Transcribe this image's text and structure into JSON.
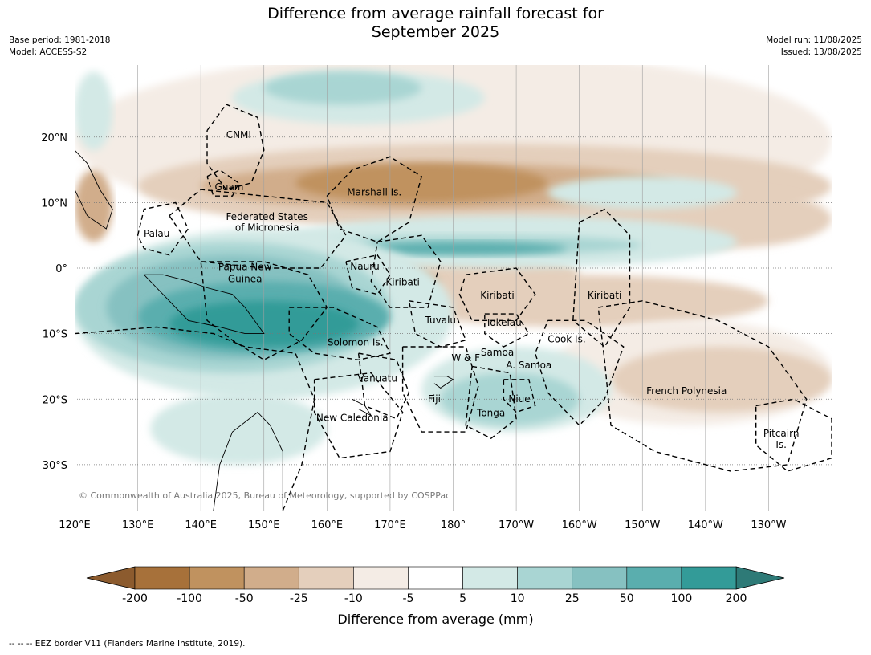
{
  "header": {
    "title_line1": "Difference from average rainfall forecast for",
    "title_line2": "September 2025",
    "base_period": "Base period: 1981-2018",
    "model": "Model: ACCESS-S2",
    "model_run": "Model run: 11/08/2025",
    "issued": "Issued: 13/08/2025"
  },
  "map": {
    "lon_labels": [
      "120°E",
      "130°E",
      "140°E",
      "150°E",
      "160°E",
      "170°E",
      "180°",
      "170°W",
      "160°W",
      "150°W",
      "140°W",
      "130°W"
    ],
    "lat_labels": [
      "20°N",
      "10°N",
      "0°",
      "10°S",
      "20°S",
      "30°S"
    ],
    "lat_values": [
      20,
      10,
      0,
      -10,
      -20,
      -30
    ],
    "lon_range": [
      120,
      240
    ],
    "lat_range": [
      -37,
      31
    ],
    "copyright": "© Commonwealth of Australia 2025, Bureau of Meteorology, supported by COSPPac",
    "regions": [
      {
        "name": "CNMI",
        "lon": 146,
        "lat": 20.3
      },
      {
        "name": "Guam",
        "lon": 144.5,
        "lat": 12.3
      },
      {
        "name": "Marshall Is.",
        "lon": 167.5,
        "lat": 11.5
      },
      {
        "name": "Federated States",
        "lon": 150.5,
        "lat": 7.8
      },
      {
        "name": "of Micronesia",
        "lon": 150.5,
        "lat": 6.1
      },
      {
        "name": "Palau",
        "lon": 133,
        "lat": 5.2
      },
      {
        "name": "Papua New",
        "lon": 147,
        "lat": 0.1
      },
      {
        "name": "Guinea",
        "lon": 147,
        "lat": -1.7
      },
      {
        "name": "Nauru",
        "lon": 166,
        "lat": 0.2
      },
      {
        "name": "Kiribati",
        "lon": 172,
        "lat": -2.2
      },
      {
        "name": "Kiribati",
        "lon": 187,
        "lat": -4.2
      },
      {
        "name": "Kiribati",
        "lon": 204,
        "lat": -4.2
      },
      {
        "name": "Tuvalu",
        "lon": 178,
        "lat": -8
      },
      {
        "name": "Tokelau",
        "lon": 188,
        "lat": -8.4
      },
      {
        "name": "Cook Is.",
        "lon": 198,
        "lat": -10.9
      },
      {
        "name": "Solomon Is.",
        "lon": 164.5,
        "lat": -11.4
      },
      {
        "name": "W & F",
        "lon": 182,
        "lat": -13.8
      },
      {
        "name": "Samoa",
        "lon": 187,
        "lat": -12.9
      },
      {
        "name": "A. Samoa",
        "lon": 192,
        "lat": -14.9
      },
      {
        "name": "Vanuatu",
        "lon": 168,
        "lat": -16.9
      },
      {
        "name": "Fiji",
        "lon": 177,
        "lat": -20
      },
      {
        "name": "Niue",
        "lon": 190.5,
        "lat": -20
      },
      {
        "name": "Tonga",
        "lon": 186,
        "lat": -22.2
      },
      {
        "name": "French Polynesia",
        "lon": 217,
        "lat": -18.8
      },
      {
        "name": "New Caledonia",
        "lon": 164,
        "lat": -22.9
      },
      {
        "name": "Pitcairn",
        "lon": 232,
        "lat": -25.3
      },
      {
        "name": "Is.",
        "lon": 232,
        "lat": -27
      }
    ]
  },
  "colorbar": {
    "ticks": [
      "-200",
      "-100",
      "-50",
      "-25",
      "-10",
      "-5",
      "5",
      "10",
      "25",
      "50",
      "100",
      "200"
    ],
    "colors": [
      "#a7713a",
      "#c0925f",
      "#d1ad8b",
      "#e4cfbc",
      "#f4ece5",
      "#ffffff",
      "#d3e9e6",
      "#a9d5d3",
      "#86c1c1",
      "#5aaeae",
      "#339b98"
    ],
    "under_color": "#8c5b2e",
    "over_color": "#2e7a77",
    "label": "Difference from average (mm)"
  },
  "footer": {
    "eez_note": "--  --  -- EEZ border V11 (Flanders Marine Institute, 2019)."
  }
}
